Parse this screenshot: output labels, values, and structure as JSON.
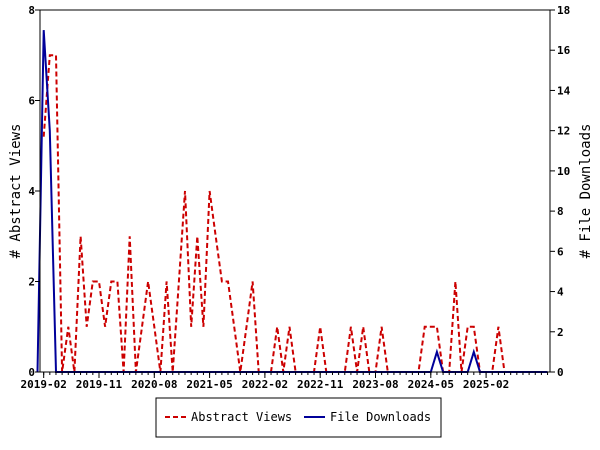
{
  "chart_data": {
    "type": "line",
    "ylabel": "# Abstract Views",
    "y2label": "# File Downloads",
    "ylim": [
      0,
      8
    ],
    "y2lim": [
      0,
      18
    ],
    "yticks": [
      0,
      2,
      4,
      6,
      8
    ],
    "y2ticks": [
      0,
      2,
      4,
      6,
      8,
      10,
      12,
      14,
      16,
      18
    ],
    "xlim": [
      "2019-02",
      "2025-12"
    ],
    "xticks": [
      "2019-02",
      "2019-11",
      "2020-08",
      "2021-05",
      "2022-02",
      "2022-11",
      "2023-08",
      "2024-05",
      "2025-02"
    ],
    "legend_position": "bottom",
    "grid": false,
    "series": [
      {
        "name": "Abstract Views",
        "axis": "left",
        "color": "#cc0000",
        "dash": true,
        "points": [
          [
            "2019-02",
            5.2
          ],
          [
            "2019-03",
            7.0
          ],
          [
            "2019-04",
            7.0
          ],
          [
            "2019-05",
            0
          ],
          [
            "2019-06",
            1
          ],
          [
            "2019-07",
            0
          ],
          [
            "2019-08",
            3
          ],
          [
            "2019-09",
            1
          ],
          [
            "2019-10",
            2
          ],
          [
            "2019-11",
            2
          ],
          [
            "2019-12",
            1
          ],
          [
            "2020-01",
            2
          ],
          [
            "2020-02",
            2
          ],
          [
            "2020-03",
            0
          ],
          [
            "2020-04",
            3
          ],
          [
            "2020-05",
            0
          ],
          [
            "2020-06",
            1
          ],
          [
            "2020-07",
            2
          ],
          [
            "2020-08",
            1
          ],
          [
            "2020-09",
            0
          ],
          [
            "2020-10",
            2
          ],
          [
            "2020-11",
            0
          ],
          [
            "2020-12",
            2
          ],
          [
            "2021-01",
            4
          ],
          [
            "2021-02",
            1
          ],
          [
            "2021-03",
            3
          ],
          [
            "2021-04",
            1
          ],
          [
            "2021-05",
            4
          ],
          [
            "2021-06",
            3
          ],
          [
            "2021-07",
            2
          ],
          [
            "2021-08",
            2
          ],
          [
            "2021-09",
            1
          ],
          [
            "2021-10",
            0
          ],
          [
            "2021-11",
            1
          ],
          [
            "2021-12",
            2
          ],
          [
            "2022-01",
            0
          ],
          [
            "2022-02",
            0
          ],
          [
            "2022-03",
            0
          ],
          [
            "2022-04",
            1
          ],
          [
            "2022-05",
            0
          ],
          [
            "2022-06",
            1
          ],
          [
            "2022-07",
            0
          ],
          [
            "2022-08",
            0
          ],
          [
            "2022-09",
            0
          ],
          [
            "2022-10",
            0
          ],
          [
            "2022-11",
            1
          ],
          [
            "2022-12",
            0
          ],
          [
            "2023-01",
            0
          ],
          [
            "2023-02",
            0
          ],
          [
            "2023-03",
            0
          ],
          [
            "2023-04",
            1
          ],
          [
            "2023-05",
            0
          ],
          [
            "2023-06",
            1
          ],
          [
            "2023-07",
            0
          ],
          [
            "2023-08",
            0
          ],
          [
            "2023-09",
            1
          ],
          [
            "2023-10",
            0
          ],
          [
            "2023-11",
            0
          ],
          [
            "2023-12",
            0
          ],
          [
            "2024-01",
            0
          ],
          [
            "2024-02",
            0
          ],
          [
            "2024-03",
            0
          ],
          [
            "2024-04",
            1
          ],
          [
            "2024-05",
            1
          ],
          [
            "2024-06",
            1
          ],
          [
            "2024-07",
            0
          ],
          [
            "2024-08",
            0
          ],
          [
            "2024-09",
            2
          ],
          [
            "2024-10",
            0
          ],
          [
            "2024-11",
            1
          ],
          [
            "2024-12",
            1
          ],
          [
            "2025-01",
            0
          ],
          [
            "2025-02",
            0
          ],
          [
            "2025-03",
            0
          ],
          [
            "2025-04",
            1
          ],
          [
            "2025-05",
            0
          ],
          [
            "2025-06",
            0
          ],
          [
            "2025-07",
            0
          ],
          [
            "2025-08",
            0
          ],
          [
            "2025-09",
            0
          ],
          [
            "2025-10",
            0
          ],
          [
            "2025-11",
            0
          ],
          [
            "2025-12",
            0
          ]
        ]
      },
      {
        "name": "File Downloads",
        "axis": "right",
        "color": "#000099",
        "dash": false,
        "points": [
          [
            "2019-01",
            0
          ],
          [
            "2019-02",
            17
          ],
          [
            "2019-03",
            12
          ],
          [
            "2019-04",
            0
          ],
          [
            "2019-05",
            0
          ],
          [
            "2024-05",
            0
          ],
          [
            "2024-06",
            1
          ],
          [
            "2024-07",
            0
          ],
          [
            "2024-11",
            0
          ],
          [
            "2024-12",
            1
          ],
          [
            "2025-01",
            0
          ],
          [
            "2025-12",
            0
          ]
        ]
      }
    ]
  }
}
